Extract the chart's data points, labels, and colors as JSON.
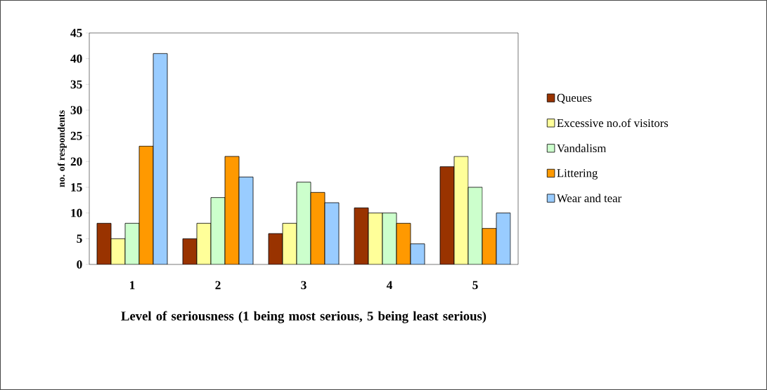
{
  "chart_data": {
    "type": "bar",
    "xlabel": "Level of seriousness (1 being most serious, 5 being least serious)",
    "ylabel": "no. of respondents",
    "categories": [
      "1",
      "2",
      "3",
      "4",
      "5"
    ],
    "series": [
      {
        "name": "Queues",
        "color": "#993300",
        "values": [
          8,
          5,
          6,
          11,
          19
        ]
      },
      {
        "name": "Excessive no.of visitors",
        "color": "#ffff99",
        "values": [
          5,
          8,
          8,
          10,
          21
        ]
      },
      {
        "name": "Vandalism",
        "color": "#ccffcc",
        "values": [
          8,
          13,
          16,
          10,
          15
        ]
      },
      {
        "name": "Littering",
        "color": "#ff9900",
        "values": [
          23,
          21,
          14,
          8,
          7
        ]
      },
      {
        "name": "Wear and tear",
        "color": "#99ccff",
        "values": [
          41,
          17,
          12,
          4,
          10
        ]
      }
    ],
    "ylim": [
      0,
      45
    ],
    "yticks": [
      0,
      5,
      10,
      15,
      20,
      25,
      30,
      35,
      40,
      45
    ],
    "grid": false,
    "legend": "right"
  }
}
